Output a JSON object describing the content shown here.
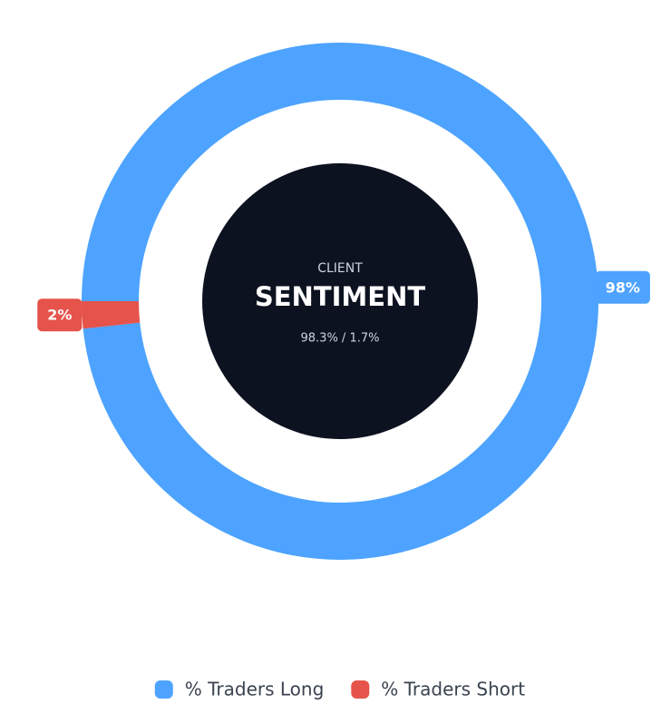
{
  "chart_data": {
    "type": "pie",
    "donut": true,
    "center_label": "CLIENT",
    "center_title": "SENTIMENT",
    "center_text": "98.3% / 1.7%",
    "categories": [
      "% Traders Long",
      "% Traders Short"
    ],
    "values": [
      98.3,
      1.7
    ],
    "value_labels": [
      "98%",
      "2%"
    ],
    "colors": [
      "#4da3ff",
      "#e5534b"
    ]
  }
}
